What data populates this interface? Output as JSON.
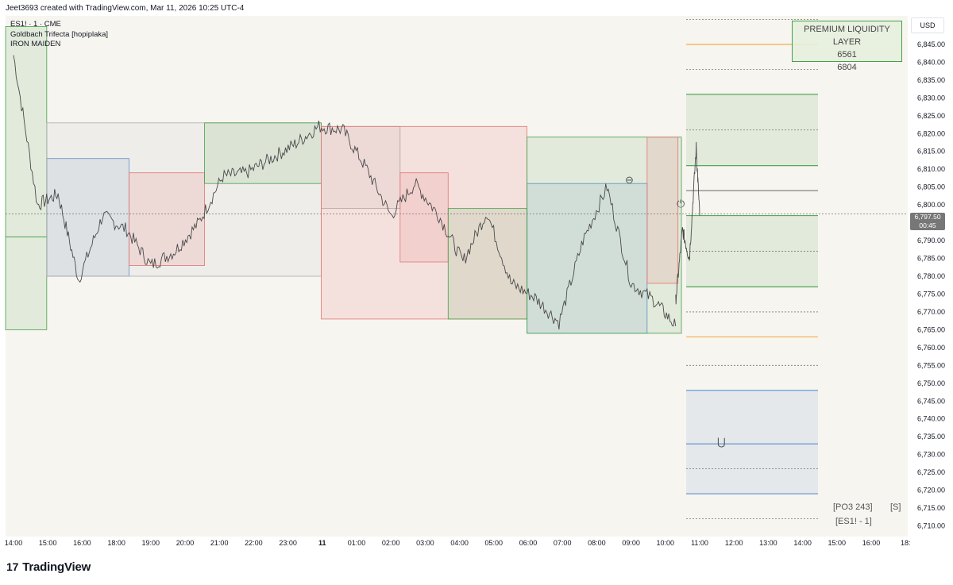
{
  "header": {
    "created_by": "Jeet3693 created with TradingView.com, Mar 11, 2026 10:25 UTC-4"
  },
  "chart_info": {
    "symbol": "ES1! · 1 · CME",
    "indicator1": "Goldbach Trifecta [hopiplaka]",
    "indicator2": "IRON MAIDEN"
  },
  "premium_box": {
    "title": "PREMIUM LIQUIDITY LAYER",
    "val1": "6561",
    "val2": "6804"
  },
  "currency": "USD",
  "last_price": {
    "price": "6,797.50",
    "countdown": "00:45"
  },
  "footer": {
    "po3": "[PO3 243]",
    "s": "[S]",
    "sym": "[ES1! - 1]"
  },
  "logo": {
    "mark": "17",
    "text": "TradingView"
  },
  "colors": {
    "bg": "#f7f5f0",
    "green": "#43a047",
    "red": "#e57373",
    "blue": "#5b8fd0",
    "orange": "#f2a33a",
    "grey": "#777777"
  },
  "chart_data": {
    "type": "line",
    "title": "",
    "ylim": [
      6707,
      6853
    ],
    "ytick_labels": [
      "6,845.00",
      "6,840.00",
      "6,835.00",
      "6,830.00",
      "6,825.00",
      "6,820.00",
      "6,815.00",
      "6,810.00",
      "6,805.00",
      "6,800.00",
      "6,795.00",
      "6,790.00",
      "6,785.00",
      "6,780.00",
      "6,775.00",
      "6,770.00",
      "6,765.00",
      "6,760.00",
      "6,755.00",
      "6,750.00",
      "6,745.00",
      "6,740.00",
      "6,735.00",
      "6,730.00",
      "6,725.00",
      "6,720.00",
      "6,715.00",
      "6,710.00"
    ],
    "xtick_labels": [
      "14:00",
      "15:00",
      "16:00",
      "18:00",
      "19:00",
      "20:00",
      "21:00",
      "22:00",
      "23:00",
      "11",
      "01:00",
      "02:00",
      "03:00",
      "04:00",
      "05:00",
      "06:00",
      "07:00",
      "08:00",
      "09:00",
      "10:00",
      "11:00",
      "12:00",
      "13:00",
      "14:00",
      "15:00",
      "16:00",
      "18:"
    ],
    "series": [
      {
        "x": [
          0,
          0.7,
          1.3,
          1.9,
          2.6,
          3.3,
          4.0,
          4.7,
          5.4,
          6.1,
          6.8,
          7.5,
          8.2,
          8.9,
          9.6,
          10.3,
          11.0,
          11.7,
          12.4,
          13.1,
          13.8,
          14.5,
          15.2,
          15.9,
          16.6,
          17.3,
          18.0,
          18.7,
          19.3
        ],
        "values": [
          6842,
          6800,
          6803,
          6779,
          6797,
          6793,
          6783,
          6787,
          6795,
          6808,
          6809,
          6813,
          6817,
          6822,
          6821,
          6810,
          6797,
          6806,
          6797,
          6784,
          6798,
          6778,
          6774,
          6767,
          6790,
          6805,
          6778,
          6773,
          6766
        ]
      }
    ],
    "series_ext": [
      {
        "x": [
          19.3,
          19.5,
          19.7,
          19.9,
          20.0
        ],
        "values": [
          6773,
          6793,
          6785,
          6816,
          6797
        ]
      }
    ],
    "boxes": [
      {
        "x0": 0,
        "x1": 1.2,
        "top": 6850,
        "bottom": 6791,
        "color": "green"
      },
      {
        "x0": 0,
        "x1": 1.2,
        "top": 6791,
        "bottom": 6765,
        "color": "green"
      },
      {
        "x0": 1.2,
        "x1": 3.6,
        "top": 6813,
        "bottom": 6780,
        "color": "blue"
      },
      {
        "x0": 1.2,
        "x1": 9.2,
        "top": 6823,
        "bottom": 6780,
        "color": "grey"
      },
      {
        "x0": 3.6,
        "x1": 5.8,
        "top": 6809,
        "bottom": 6783,
        "color": "red"
      },
      {
        "x0": 5.8,
        "x1": 9.2,
        "top": 6823,
        "bottom": 6806,
        "color": "green"
      },
      {
        "x0": 9.2,
        "x1": 11.5,
        "top": 6822,
        "bottom": 6799,
        "color": "grey"
      },
      {
        "x0": 9.2,
        "x1": 15.2,
        "top": 6822,
        "bottom": 6768,
        "color": "red"
      },
      {
        "x0": 11.5,
        "x1": 12.9,
        "top": 6809,
        "bottom": 6784,
        "color": "red"
      },
      {
        "x0": 12.9,
        "x1": 15.2,
        "top": 6799,
        "bottom": 6768,
        "color": "green"
      },
      {
        "x0": 15.2,
        "x1": 18.7,
        "top": 6806,
        "bottom": 6764,
        "color": "blue"
      },
      {
        "x0": 15.2,
        "x1": 19.7,
        "top": 6819,
        "bottom": 6764,
        "color": "green"
      },
      {
        "x0": 18.7,
        "x1": 19.6,
        "top": 6819,
        "bottom": 6778,
        "color": "red"
      }
    ],
    "zones": [
      {
        "top": 6831,
        "bottom": 6811,
        "color": "green"
      },
      {
        "top": 6797,
        "bottom": 6777,
        "color": "green"
      },
      {
        "top": 6748,
        "bottom": 6719,
        "color": "blue"
      }
    ],
    "levels": [
      {
        "y": 6845,
        "color": "orange",
        "style": "solid"
      },
      {
        "y": 6838,
        "color": "grey",
        "style": "dotted"
      },
      {
        "y": 6831,
        "color": "green",
        "style": "solid"
      },
      {
        "y": 6821,
        "color": "grey",
        "style": "dotted"
      },
      {
        "y": 6811,
        "color": "green",
        "style": "solid"
      },
      {
        "y": 6804,
        "color": "grey",
        "style": "solid"
      },
      {
        "y": 6797,
        "color": "green",
        "style": "solid"
      },
      {
        "y": 6787,
        "color": "grey",
        "style": "dotted"
      },
      {
        "y": 6777,
        "color": "green",
        "style": "solid"
      },
      {
        "y": 6770,
        "color": "grey",
        "style": "dotted"
      },
      {
        "y": 6763,
        "color": "orange",
        "style": "solid"
      },
      {
        "y": 6755,
        "color": "grey",
        "style": "dotted"
      },
      {
        "y": 6748,
        "color": "blue",
        "style": "solid"
      },
      {
        "y": 6733,
        "color": "blue",
        "style": "solid"
      },
      {
        "y": 6726,
        "color": "grey",
        "style": "dotted"
      },
      {
        "y": 6719,
        "color": "blue",
        "style": "solid"
      },
      {
        "y": 6712,
        "color": "grey",
        "style": "dotted"
      }
    ],
    "levels_top": [
      6852
    ],
    "last_price_value": 6797.5,
    "grid": false,
    "legend": "none"
  }
}
